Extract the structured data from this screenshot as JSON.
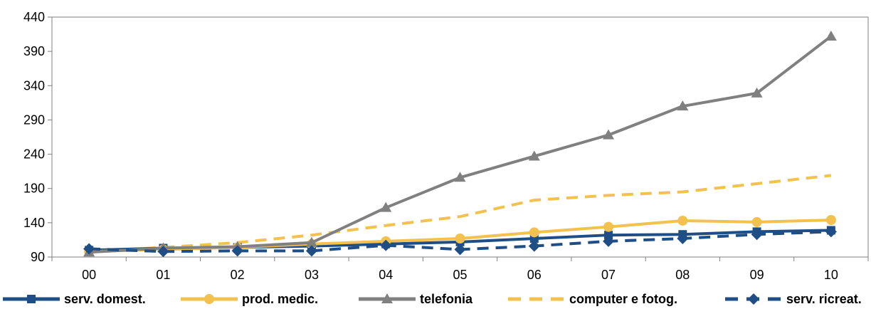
{
  "chart_data": {
    "type": "line",
    "title": "",
    "xlabel": "",
    "ylabel": "",
    "categories": [
      "00",
      "01",
      "02",
      "03",
      "04",
      "05",
      "06",
      "07",
      "08",
      "09",
      "10"
    ],
    "ylim": [
      90,
      440
    ],
    "yticks": [
      "90",
      "140",
      "190",
      "240",
      "290",
      "340",
      "390",
      "440"
    ],
    "grid": false,
    "legend_position": "bottom",
    "series": [
      {
        "name": "serv. domest.",
        "color": "#1F4E87",
        "dash": "solid",
        "marker": "square",
        "values": [
          100,
          103,
          104,
          106,
          109,
          112,
          117,
          122,
          123,
          127,
          129
        ]
      },
      {
        "name": "prod. medic.",
        "color": "#F2C14E",
        "dash": "solid",
        "marker": "circle",
        "values": [
          98,
          101,
          104,
          109,
          113,
          117,
          126,
          134,
          143,
          141,
          144
        ]
      },
      {
        "name": "telefonia",
        "color": "#808080",
        "dash": "solid",
        "marker": "triangle",
        "values": [
          97,
          103,
          105,
          111,
          162,
          206,
          237,
          268,
          310,
          329,
          412
        ]
      },
      {
        "name": "computer e fotog.",
        "color": "#F2C14E",
        "dash": "dashed",
        "marker": "none",
        "values": [
          98,
          104,
          111,
          122,
          136,
          149,
          173,
          180,
          185,
          197,
          209
        ]
      },
      {
        "name": "serv. ricreat.",
        "color": "#1F4E87",
        "dash": "dashed",
        "marker": "diamond",
        "values": [
          102,
          98,
          99,
          99,
          107,
          101,
          106,
          113,
          117,
          123,
          127
        ]
      }
    ]
  }
}
